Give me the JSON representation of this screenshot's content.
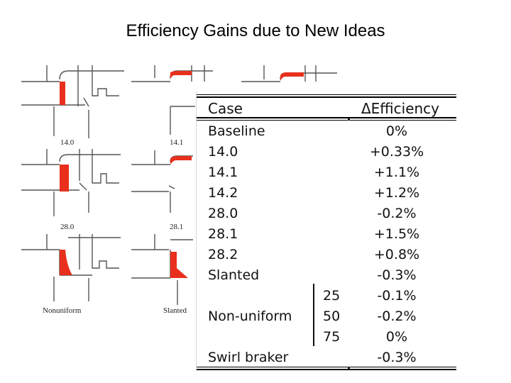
{
  "title": "Efficiency Gains due to New Ideas",
  "sketch_labels": {
    "r1c1": "14.0",
    "r1c2": "14.1",
    "r2c1": "28.0",
    "r2c2": "28.1",
    "r3c1": "Nonuniform",
    "r3c2": "Slanted"
  },
  "table": {
    "col_case": "Case",
    "col_delta": "ΔEfficiency",
    "rows": [
      {
        "case": "Baseline",
        "sub": "",
        "delta": "0%"
      },
      {
        "case": "14.0",
        "sub": "",
        "delta": "+0.33%"
      },
      {
        "case": "14.1",
        "sub": "",
        "delta": "+1.1%"
      },
      {
        "case": "14.2",
        "sub": "",
        "delta": "+1.2%"
      },
      {
        "case": "28.0",
        "sub": "",
        "delta": "-0.2%"
      },
      {
        "case": "28.1",
        "sub": "",
        "delta": "+1.5%"
      },
      {
        "case": "28.2",
        "sub": "",
        "delta": "+0.8%"
      },
      {
        "case": "Slanted",
        "sub": "",
        "delta": "-0.3%"
      },
      {
        "case": "",
        "sub": "25",
        "delta": "-0.1%"
      },
      {
        "case": "Non-uniform",
        "sub": "50",
        "delta": "-0.2%"
      },
      {
        "case": "",
        "sub": "75",
        "delta": "0%"
      },
      {
        "case": "Swirl braker",
        "sub": "",
        "delta": "-0.3%"
      }
    ]
  },
  "colors": {
    "highlight": "#e8301c",
    "line": "#555555"
  }
}
